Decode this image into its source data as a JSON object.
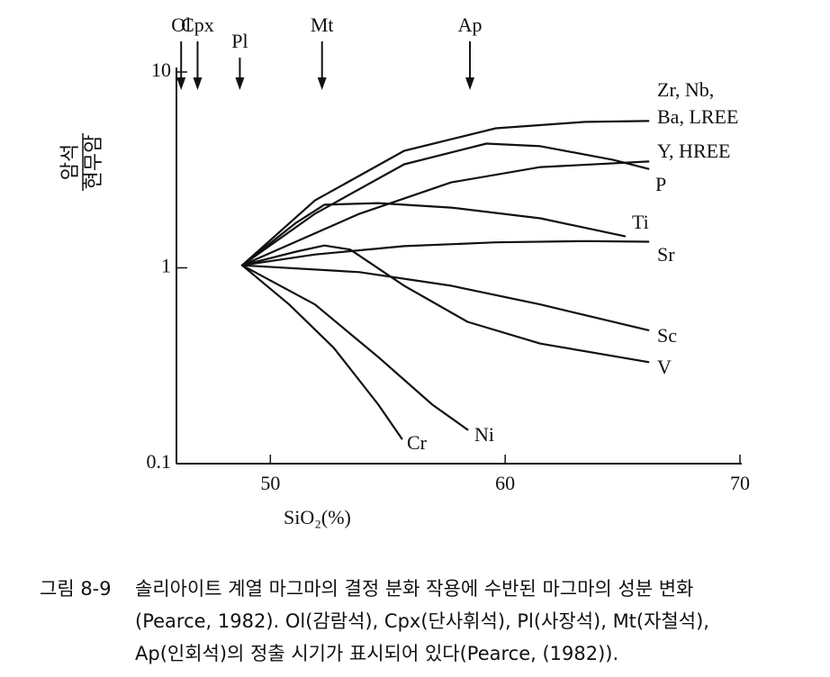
{
  "chart_data": {
    "type": "line",
    "log_y": true,
    "y_label": {
      "numerator": "암석",
      "denominator": "현무암"
    },
    "x_label": "SiO₂(%)",
    "xlim": [
      46,
      70
    ],
    "xticks": [
      50,
      60,
      70
    ],
    "ylim": [
      0.1,
      10
    ],
    "yticks": [
      0.1,
      1,
      10
    ],
    "color": "#111111",
    "annotations": [
      {
        "text": "Ol",
        "x": 46.2
      },
      {
        "text": "Cpx",
        "x": 46.9
      },
      {
        "text": "Pl",
        "x": 48.7
      },
      {
        "text": "Mt",
        "x": 52.2
      },
      {
        "text": "Ap",
        "x": 58.5
      }
    ],
    "series": [
      {
        "name": "Zr, Nb,\nBa, LREE",
        "x": [
          48.8,
          51.9,
          55.7,
          59.6,
          63.4,
          66.1
        ],
        "values": [
          1.03,
          2.21,
          3.96,
          5.16,
          5.56,
          5.62
        ]
      },
      {
        "name": "Y, HREE",
        "x": [
          48.8,
          53.8,
          57.7,
          61.5,
          66.1
        ],
        "values": [
          1.03,
          1.89,
          2.73,
          3.27,
          3.49
        ]
      },
      {
        "name": "P",
        "x": [
          48.8,
          51.9,
          55.7,
          59.2,
          61.5,
          64.6,
          66.1
        ],
        "values": [
          1.03,
          1.89,
          3.38,
          4.31,
          4.18,
          3.56,
          3.2
        ]
      },
      {
        "name": "Ti",
        "x": [
          48.8,
          51.1,
          52.3,
          54.6,
          57.7,
          61.5,
          65.1
        ],
        "values": [
          1.03,
          1.7,
          2.1,
          2.14,
          2.03,
          1.79,
          1.45
        ]
      },
      {
        "name": "Sr",
        "x": [
          48.8,
          51.9,
          55.7,
          59.6,
          63.4,
          66.1
        ],
        "values": [
          1.03,
          1.17,
          1.29,
          1.35,
          1.37,
          1.36
        ]
      },
      {
        "name": "Sc",
        "x": [
          48.8,
          53.8,
          57.7,
          61.5,
          66.1
        ],
        "values": [
          1.03,
          0.95,
          0.81,
          0.65,
          0.48
        ]
      },
      {
        "name": "V",
        "x": [
          48.8,
          51.1,
          52.3,
          53.4,
          55.7,
          58.4,
          61.5,
          66.1
        ],
        "values": [
          1.03,
          1.21,
          1.3,
          1.24,
          0.81,
          0.53,
          0.41,
          0.33
        ]
      },
      {
        "name": "Ni",
        "x": [
          48.8,
          51.9,
          54.6,
          56.9,
          58.4
        ],
        "values": [
          1.03,
          0.65,
          0.35,
          0.2,
          0.149
        ]
      },
      {
        "name": "Cr",
        "x": [
          48.8,
          50.8,
          52.7,
          54.6,
          55.6
        ],
        "values": [
          1.03,
          0.65,
          0.39,
          0.2,
          0.134
        ]
      }
    ]
  },
  "caption": {
    "number": "그림 8-9",
    "lines": [
      "솔리아이트 계열 마그마의 결정 분화 작용에 수반된 마그마의 성분 변화",
      "(Pearce, 1982). Ol(감람석), Cpx(단사휘석), Pl(사장석), Mt(자철석),",
      "Ap(인회석)의 정출 시기가 표시되어 있다(Pearce, (1982))."
    ]
  }
}
